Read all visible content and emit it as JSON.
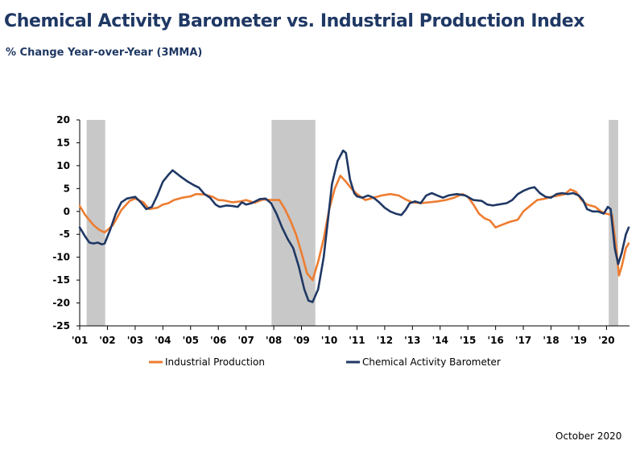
{
  "footnote": "October 2020",
  "chart_data": {
    "type": "line",
    "title": "Chemical Activity Barometer vs. Industrial Production Index",
    "subtitle": "% Change Year-over-Year (3MMA)",
    "xlabel": "",
    "ylabel": "",
    "xlim": [
      2001.0,
      2020.83
    ],
    "ylim": [
      -25,
      20
    ],
    "yticks": [
      20,
      15,
      10,
      5,
      0,
      -5,
      -10,
      -15,
      -20,
      -25
    ],
    "xticks": [
      {
        "label": "'01",
        "x": 2001.0
      },
      {
        "label": "'02",
        "x": 2002.0
      },
      {
        "label": "'03",
        "x": 2003.0
      },
      {
        "label": "'04",
        "x": 2004.0
      },
      {
        "label": "'05",
        "x": 2005.0
      },
      {
        "label": "'06",
        "x": 2006.0
      },
      {
        "label": "'07",
        "x": 2007.0
      },
      {
        "label": "'08",
        "x": 2008.0
      },
      {
        "label": "'09",
        "x": 2009.0
      },
      {
        "label": "'10",
        "x": 2010.0
      },
      {
        "label": "'11",
        "x": 2011.0
      },
      {
        "label": "'12",
        "x": 2012.0
      },
      {
        "label": "'13",
        "x": 2013.0
      },
      {
        "label": "'14",
        "x": 2014.0
      },
      {
        "label": "'15",
        "x": 2015.0
      },
      {
        "label": "'16",
        "x": 2016.0
      },
      {
        "label": "'17",
        "x": 2017.0
      },
      {
        "label": "'18",
        "x": 2018.0
      },
      {
        "label": "'19",
        "x": 2019.0
      },
      {
        "label": "'20",
        "x": 2020.0
      }
    ],
    "shaded_periods": [
      [
        2001.25,
        2001.92
      ],
      [
        2007.92,
        2009.5
      ],
      [
        2020.08,
        2020.42
      ]
    ],
    "grid": false,
    "legend_position": "bottom",
    "series": [
      {
        "name": "Industrial Production",
        "color": "#ed7d31",
        "points": [
          [
            2001.0,
            1.2
          ],
          [
            2001.2,
            -0.8
          ],
          [
            2001.5,
            -3.0
          ],
          [
            2001.7,
            -4.0
          ],
          [
            2001.9,
            -4.6
          ],
          [
            2002.2,
            -3.0
          ],
          [
            2002.5,
            0.3
          ],
          [
            2002.8,
            2.3
          ],
          [
            2003.0,
            2.8
          ],
          [
            2003.3,
            2.0
          ],
          [
            2003.5,
            0.5
          ],
          [
            2003.8,
            0.8
          ],
          [
            2004.0,
            1.5
          ],
          [
            2004.2,
            1.8
          ],
          [
            2004.4,
            2.5
          ],
          [
            2004.7,
            3.0
          ],
          [
            2005.0,
            3.3
          ],
          [
            2005.2,
            3.8
          ],
          [
            2005.5,
            3.7
          ],
          [
            2005.8,
            3.2
          ],
          [
            2006.0,
            2.5
          ],
          [
            2006.2,
            2.4
          ],
          [
            2006.5,
            2.0
          ],
          [
            2006.8,
            2.2
          ],
          [
            2007.0,
            2.5
          ],
          [
            2007.3,
            1.9
          ],
          [
            2007.6,
            2.6
          ],
          [
            2007.9,
            2.5
          ],
          [
            2008.2,
            2.5
          ],
          [
            2008.4,
            0.5
          ],
          [
            2008.6,
            -2.0
          ],
          [
            2008.8,
            -5.0
          ],
          [
            2009.0,
            -9.0
          ],
          [
            2009.2,
            -13.5
          ],
          [
            2009.4,
            -15.0
          ],
          [
            2009.6,
            -11.0
          ],
          [
            2009.8,
            -6.0
          ],
          [
            2010.0,
            0.5
          ],
          [
            2010.2,
            5.0
          ],
          [
            2010.4,
            7.8
          ],
          [
            2010.6,
            6.5
          ],
          [
            2010.8,
            5.0
          ],
          [
            2011.0,
            3.8
          ],
          [
            2011.3,
            2.5
          ],
          [
            2011.6,
            3.0
          ],
          [
            2011.9,
            3.5
          ],
          [
            2012.2,
            3.8
          ],
          [
            2012.5,
            3.5
          ],
          [
            2012.8,
            2.5
          ],
          [
            2013.0,
            2.0
          ],
          [
            2013.3,
            1.8
          ],
          [
            2013.6,
            2.0
          ],
          [
            2013.9,
            2.2
          ],
          [
            2014.2,
            2.5
          ],
          [
            2014.5,
            3.0
          ],
          [
            2014.8,
            3.8
          ],
          [
            2015.0,
            3.2
          ],
          [
            2015.2,
            1.5
          ],
          [
            2015.4,
            -0.5
          ],
          [
            2015.6,
            -1.5
          ],
          [
            2015.8,
            -2.0
          ],
          [
            2016.0,
            -3.5
          ],
          [
            2016.2,
            -3.0
          ],
          [
            2016.5,
            -2.3
          ],
          [
            2016.8,
            -1.8
          ],
          [
            2017.0,
            0.0
          ],
          [
            2017.3,
            1.5
          ],
          [
            2017.5,
            2.5
          ],
          [
            2017.8,
            2.8
          ],
          [
            2018.0,
            3.2
          ],
          [
            2018.3,
            3.5
          ],
          [
            2018.5,
            3.8
          ],
          [
            2018.7,
            4.8
          ],
          [
            2018.9,
            4.3
          ],
          [
            2019.1,
            2.5
          ],
          [
            2019.3,
            1.5
          ],
          [
            2019.6,
            1.0
          ],
          [
            2019.8,
            0.0
          ],
          [
            2020.0,
            -0.5
          ],
          [
            2020.2,
            -0.8
          ],
          [
            2020.35,
            -8.0
          ],
          [
            2020.45,
            -14.0
          ],
          [
            2020.55,
            -12.0
          ],
          [
            2020.7,
            -8.0
          ],
          [
            2020.8,
            -7.0
          ]
        ]
      },
      {
        "name": "Chemical Activity Barometer",
        "color": "#1f3864",
        "points": [
          [
            2001.0,
            -3.5
          ],
          [
            2001.2,
            -5.5
          ],
          [
            2001.35,
            -6.8
          ],
          [
            2001.5,
            -7.0
          ],
          [
            2001.65,
            -6.8
          ],
          [
            2001.8,
            -7.2
          ],
          [
            2001.9,
            -7.0
          ],
          [
            2002.1,
            -4.0
          ],
          [
            2002.3,
            -0.5
          ],
          [
            2002.5,
            2.0
          ],
          [
            2002.7,
            2.8
          ],
          [
            2003.0,
            3.2
          ],
          [
            2003.2,
            2.0
          ],
          [
            2003.4,
            0.5
          ],
          [
            2003.6,
            1.0
          ],
          [
            2003.8,
            3.5
          ],
          [
            2004.0,
            6.5
          ],
          [
            2004.2,
            8.0
          ],
          [
            2004.35,
            9.0
          ],
          [
            2004.6,
            7.8
          ],
          [
            2004.9,
            6.5
          ],
          [
            2005.1,
            5.8
          ],
          [
            2005.3,
            5.2
          ],
          [
            2005.5,
            3.8
          ],
          [
            2005.7,
            3.0
          ],
          [
            2005.9,
            1.5
          ],
          [
            2006.05,
            1.0
          ],
          [
            2006.3,
            1.3
          ],
          [
            2006.5,
            1.2
          ],
          [
            2006.7,
            1.0
          ],
          [
            2006.85,
            2.0
          ],
          [
            2007.0,
            1.5
          ],
          [
            2007.2,
            1.8
          ],
          [
            2007.5,
            2.7
          ],
          [
            2007.7,
            2.8
          ],
          [
            2007.9,
            1.8
          ],
          [
            2008.1,
            -0.5
          ],
          [
            2008.3,
            -3.5
          ],
          [
            2008.5,
            -6.0
          ],
          [
            2008.7,
            -8.0
          ],
          [
            2008.9,
            -12.0
          ],
          [
            2009.1,
            -17.0
          ],
          [
            2009.25,
            -19.5
          ],
          [
            2009.4,
            -19.8
          ],
          [
            2009.6,
            -17.0
          ],
          [
            2009.8,
            -10.0
          ],
          [
            2009.95,
            -2.0
          ],
          [
            2010.1,
            6.0
          ],
          [
            2010.3,
            11.0
          ],
          [
            2010.5,
            13.3
          ],
          [
            2010.6,
            12.8
          ],
          [
            2010.75,
            7.0
          ],
          [
            2010.9,
            4.0
          ],
          [
            2011.0,
            3.3
          ],
          [
            2011.2,
            3.0
          ],
          [
            2011.4,
            3.5
          ],
          [
            2011.6,
            3.0
          ],
          [
            2011.8,
            2.0
          ],
          [
            2012.0,
            0.8
          ],
          [
            2012.2,
            0.0
          ],
          [
            2012.4,
            -0.5
          ],
          [
            2012.6,
            -0.8
          ],
          [
            2012.75,
            0.3
          ],
          [
            2012.9,
            1.8
          ],
          [
            2013.1,
            2.2
          ],
          [
            2013.3,
            1.8
          ],
          [
            2013.5,
            3.5
          ],
          [
            2013.7,
            4.0
          ],
          [
            2013.9,
            3.5
          ],
          [
            2014.1,
            3.0
          ],
          [
            2014.3,
            3.5
          ],
          [
            2014.6,
            3.8
          ],
          [
            2014.9,
            3.5
          ],
          [
            2015.2,
            2.5
          ],
          [
            2015.5,
            2.3
          ],
          [
            2015.7,
            1.5
          ],
          [
            2015.9,
            1.3
          ],
          [
            2016.1,
            1.5
          ],
          [
            2016.4,
            1.8
          ],
          [
            2016.6,
            2.5
          ],
          [
            2016.8,
            3.8
          ],
          [
            2017.0,
            4.5
          ],
          [
            2017.2,
            5.0
          ],
          [
            2017.4,
            5.3
          ],
          [
            2017.6,
            4.0
          ],
          [
            2017.8,
            3.2
          ],
          [
            2018.0,
            3.0
          ],
          [
            2018.2,
            3.8
          ],
          [
            2018.4,
            4.0
          ],
          [
            2018.6,
            3.8
          ],
          [
            2018.8,
            4.0
          ],
          [
            2019.0,
            3.5
          ],
          [
            2019.15,
            2.5
          ],
          [
            2019.3,
            0.5
          ],
          [
            2019.5,
            0.0
          ],
          [
            2019.7,
            0.0
          ],
          [
            2019.9,
            -0.5
          ],
          [
            2020.05,
            1.0
          ],
          [
            2020.15,
            0.5
          ],
          [
            2020.3,
            -8.0
          ],
          [
            2020.42,
            -11.5
          ],
          [
            2020.55,
            -9.0
          ],
          [
            2020.7,
            -5.0
          ],
          [
            2020.8,
            -3.5
          ]
        ]
      }
    ]
  }
}
